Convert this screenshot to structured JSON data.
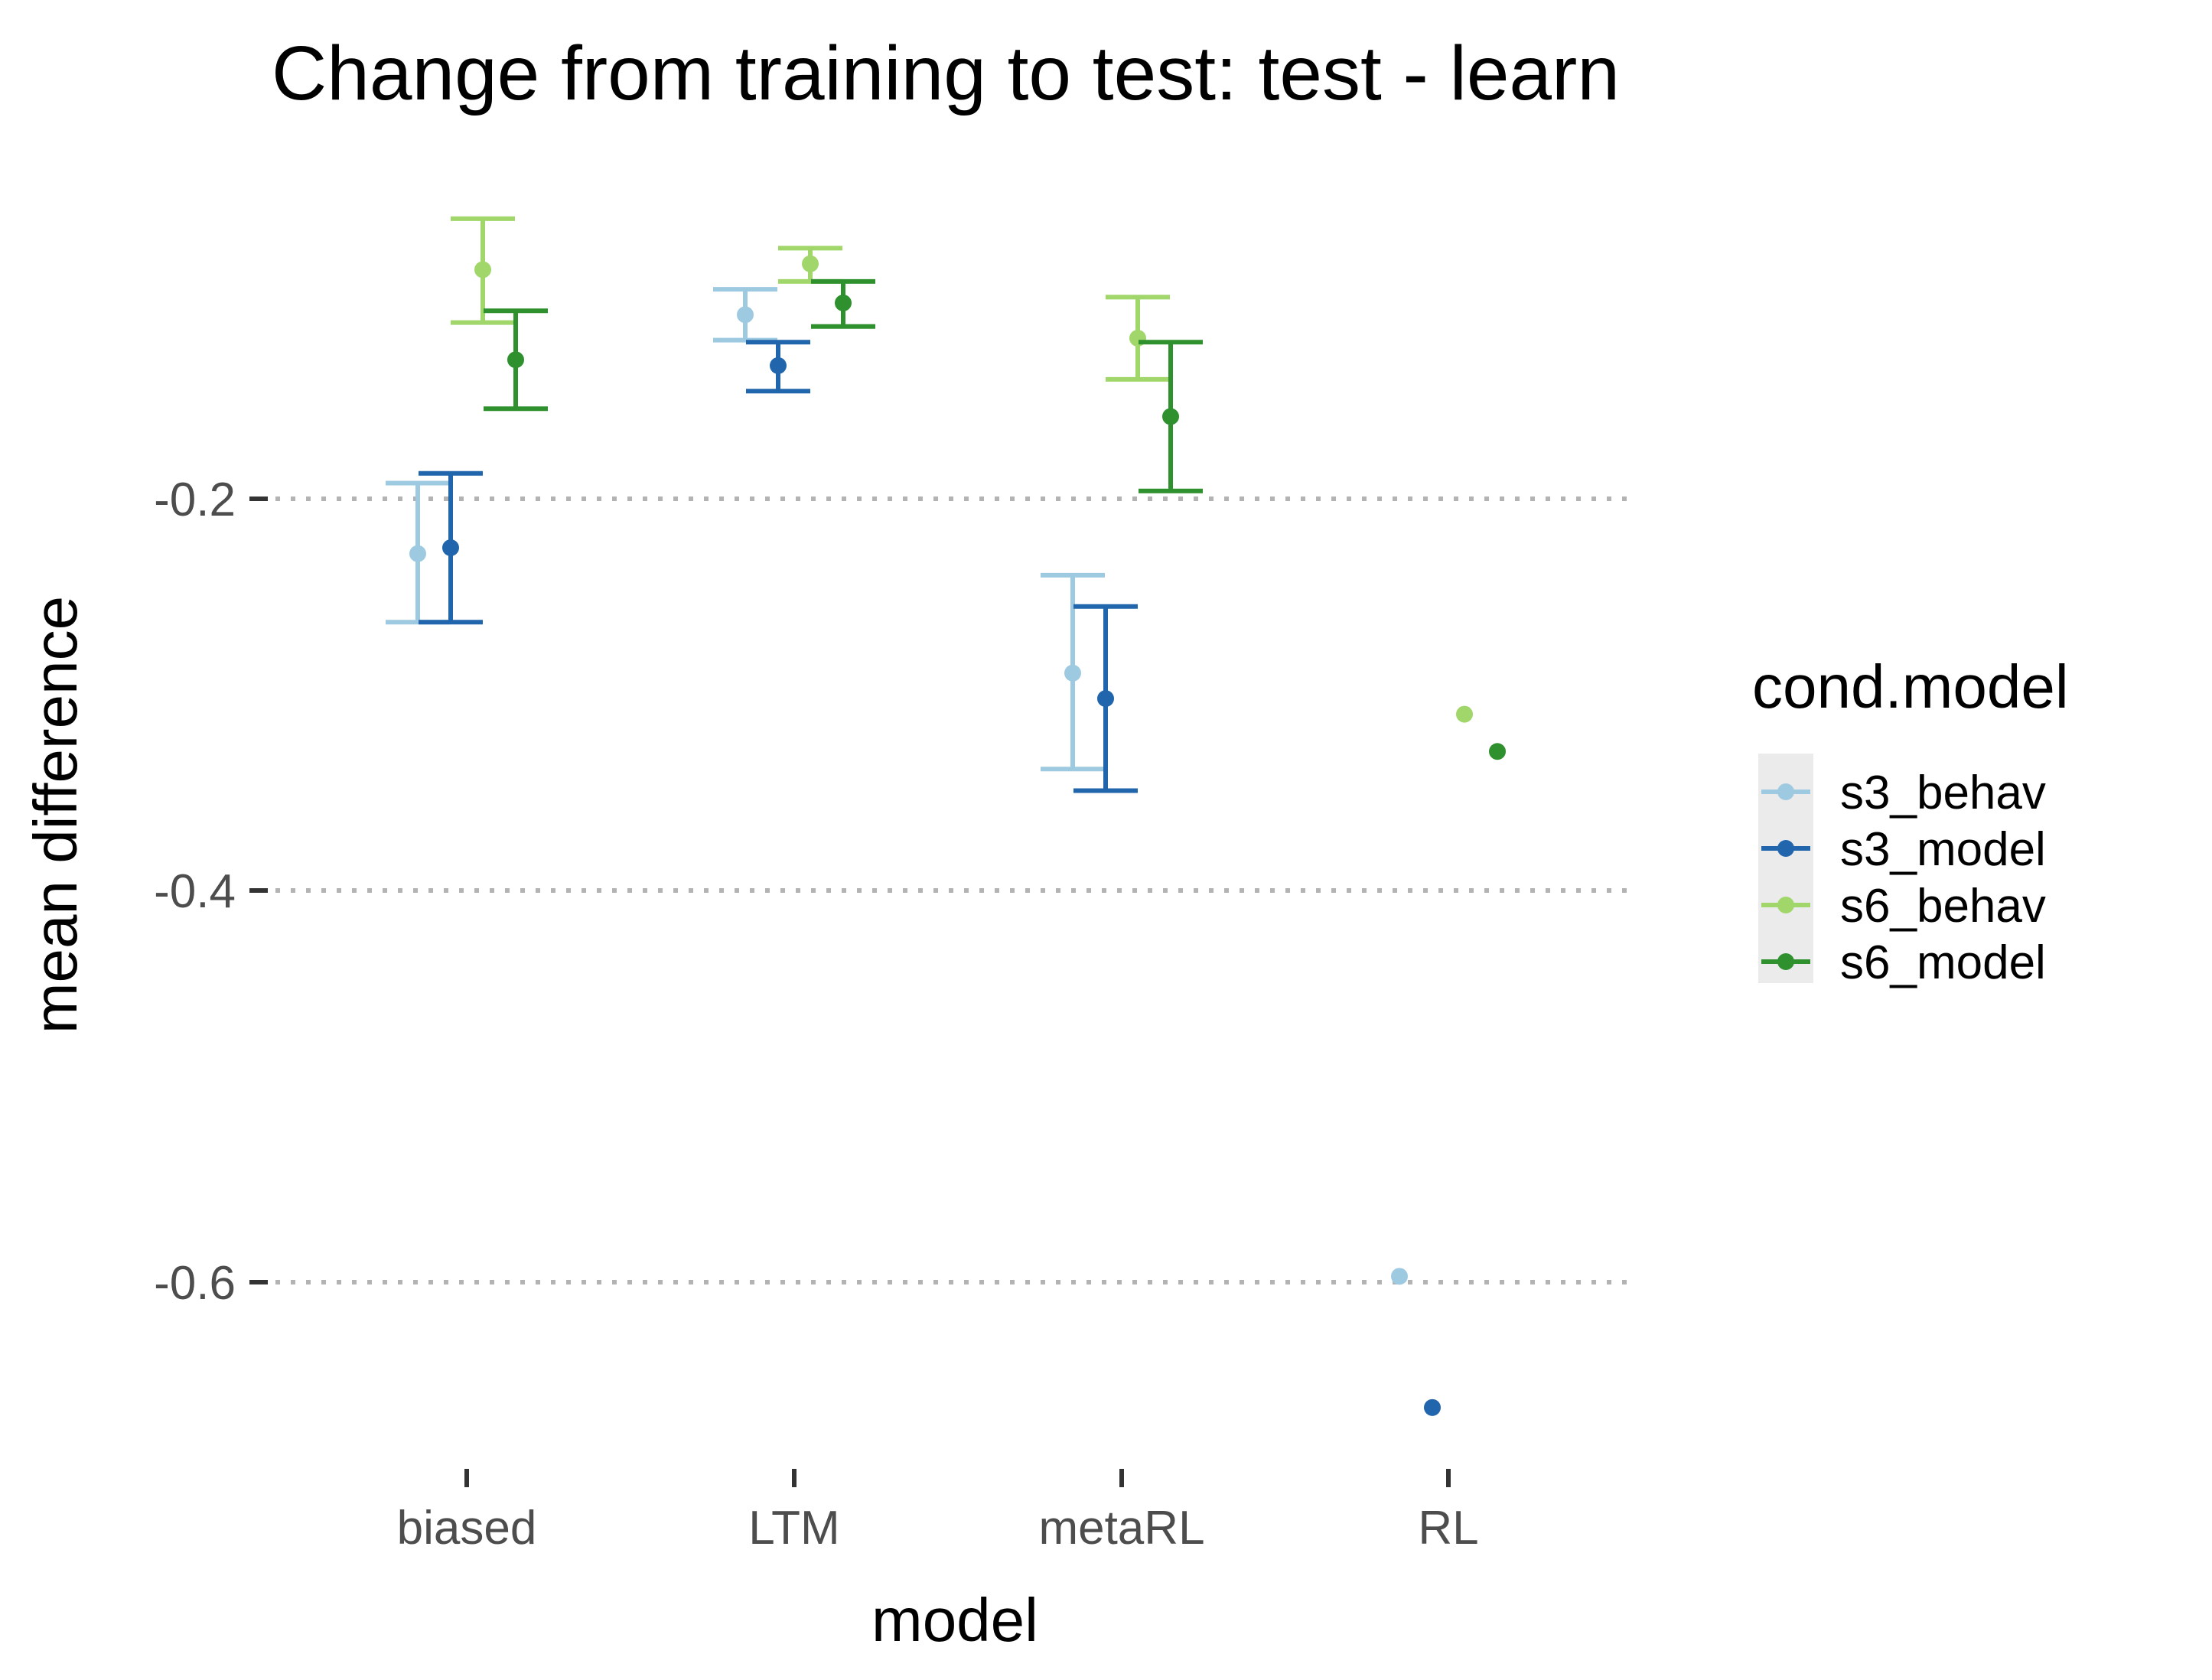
{
  "chart_data": {
    "type": "scatter",
    "title": "Change from training to test: test - learn",
    "xlabel": "model",
    "ylabel": "mean difference",
    "categories": [
      "biased",
      "LTM",
      "metaRL",
      "RL"
    ],
    "y_ticks": [
      -0.2,
      -0.4,
      -0.6
    ],
    "y_tick_labels": [
      "-0.2",
      "-0.4",
      "-0.6"
    ],
    "ylim": [
      -0.7,
      -0.05
    ],
    "grid": "horizontal major gridlines, dotted",
    "legend": {
      "title": "cond.model",
      "placement": "right"
    },
    "series": [
      {
        "name": "s3_behav",
        "color": "#9ecae1",
        "points": [
          {
            "category": "biased",
            "y": -0.228,
            "ymin": -0.263,
            "ymax": -0.192
          },
          {
            "category": "LTM",
            "y": -0.106,
            "ymin": -0.119,
            "ymax": -0.093
          },
          {
            "category": "metaRL",
            "y": -0.289,
            "ymin": -0.338,
            "ymax": -0.239
          },
          {
            "category": "RL",
            "y": -0.597
          }
        ]
      },
      {
        "name": "s3_model",
        "color": "#2166ac",
        "points": [
          {
            "category": "biased",
            "y": -0.225,
            "ymin": -0.263,
            "ymax": -0.187
          },
          {
            "category": "LTM",
            "y": -0.132,
            "ymin": -0.145,
            "ymax": -0.12
          },
          {
            "category": "metaRL",
            "y": -0.302,
            "ymin": -0.349,
            "ymax": -0.255
          },
          {
            "category": "RL",
            "y": -0.664
          }
        ]
      },
      {
        "name": "s6_behav",
        "color": "#a1d76a",
        "points": [
          {
            "category": "biased",
            "y": -0.083,
            "ymin": -0.11,
            "ymax": -0.057
          },
          {
            "category": "LTM",
            "y": -0.08,
            "ymin": -0.089,
            "ymax": -0.072
          },
          {
            "category": "metaRL",
            "y": -0.118,
            "ymin": -0.139,
            "ymax": -0.097
          },
          {
            "category": "RL",
            "y": -0.31
          }
        ]
      },
      {
        "name": "s6_model",
        "color": "#2e912e",
        "points": [
          {
            "category": "biased",
            "y": -0.129,
            "ymin": -0.154,
            "ymax": -0.104
          },
          {
            "category": "LTM",
            "y": -0.1,
            "ymin": -0.112,
            "ymax": -0.089
          },
          {
            "category": "metaRL",
            "y": -0.158,
            "ymin": -0.196,
            "ymax": -0.12
          },
          {
            "category": "RL",
            "y": -0.329
          }
        ]
      }
    ]
  }
}
